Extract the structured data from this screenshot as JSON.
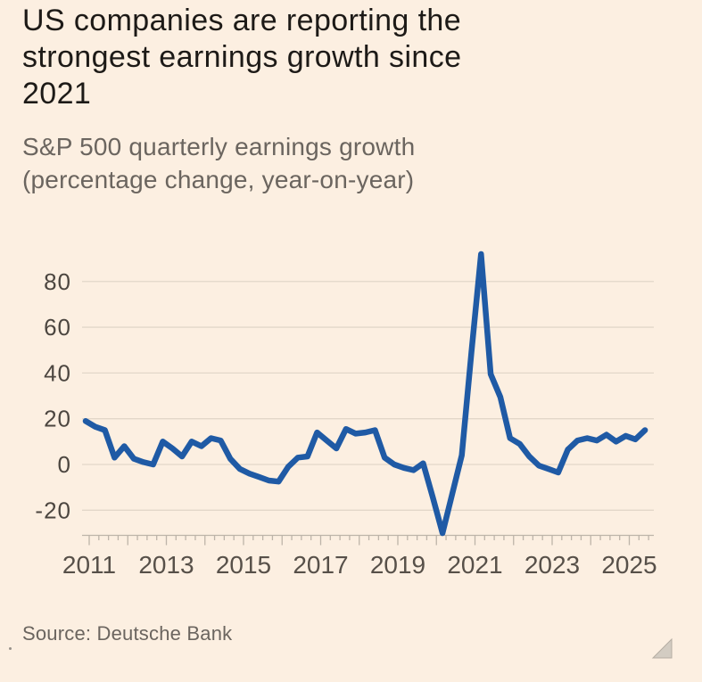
{
  "header": {
    "title": "US companies are reporting the strongest earnings growth since 2021",
    "title_lines": [
      "US companies are reporting the",
      "strongest earnings growth since",
      "2021"
    ],
    "subtitle": "S&P 500 quarterly earnings growth (percentage change, year-on-year)",
    "subtitle_lines": [
      "S&P 500 quarterly earnings growth",
      "(percentage change, year-on-year)"
    ]
  },
  "source": {
    "label": "Source: Deutsche Bank"
  },
  "colors": {
    "background": "#FCEFE1",
    "line": "#1F5AA5",
    "grid": "#E2D7C9",
    "axis": "#BDB4A9",
    "y_label": "#4C4640",
    "x_label": "#575049",
    "title": "#1D1A17",
    "muted": "#6B655F"
  },
  "chart_data": {
    "type": "line",
    "title": "S&P 500 quarterly earnings growth",
    "ylabel": "percentage change, year-on-year",
    "frequency": "quarterly",
    "grid": "horizontal",
    "legend": "none",
    "ylim": [
      -32,
      97
    ],
    "y_ticks": [
      -20,
      0,
      20,
      40,
      60,
      80
    ],
    "x_tick_labels": [
      "2011",
      "2013",
      "2015",
      "2017",
      "2019",
      "2021",
      "2023",
      "2025"
    ],
    "x": [
      "2011 Q1",
      "2011 Q2",
      "2011 Q3",
      "2011 Q4",
      "2012 Q1",
      "2012 Q2",
      "2012 Q3",
      "2012 Q4",
      "2013 Q1",
      "2013 Q2",
      "2013 Q3",
      "2013 Q4",
      "2014 Q1",
      "2014 Q2",
      "2014 Q3",
      "2014 Q4",
      "2015 Q1",
      "2015 Q2",
      "2015 Q3",
      "2015 Q4",
      "2016 Q1",
      "2016 Q2",
      "2016 Q3",
      "2016 Q4",
      "2017 Q1",
      "2017 Q2",
      "2017 Q3",
      "2017 Q4",
      "2018 Q1",
      "2018 Q2",
      "2018 Q3",
      "2018 Q4",
      "2019 Q1",
      "2019 Q2",
      "2019 Q3",
      "2019 Q4",
      "2020 Q1",
      "2020 Q2",
      "2020 Q3",
      "2020 Q4",
      "2021 Q1",
      "2021 Q2",
      "2021 Q3",
      "2021 Q4",
      "2022 Q1",
      "2022 Q2",
      "2022 Q3",
      "2022 Q4",
      "2023 Q1",
      "2023 Q2",
      "2023 Q3",
      "2023 Q4",
      "2024 Q1",
      "2024 Q2",
      "2024 Q3",
      "2024 Q4",
      "2025 Q1",
      "2025 Q2",
      "2025 Q3"
    ],
    "series": [
      {
        "name": "S&P 500 quarterly earnings growth (% change, year-on-year)",
        "values": [
          19,
          16.5,
          15,
          3,
          8,
          2.5,
          1,
          0,
          10,
          7,
          3.5,
          10,
          8,
          11.5,
          10.5,
          2.5,
          -2,
          -4,
          -5.5,
          -7,
          -7.5,
          -1,
          3,
          3.5,
          14,
          10.5,
          7,
          15.5,
          13.5,
          14,
          15,
          3,
          0,
          -1.5,
          -2.5,
          0.5,
          -14.5,
          -30,
          -13,
          4,
          49,
          92,
          39.5,
          29.5,
          11.5,
          9,
          3.5,
          -0.5,
          -2,
          -3.5,
          6.5,
          10.5,
          11.5,
          10.5,
          13,
          10,
          12.5,
          11,
          15
        ]
      }
    ]
  }
}
